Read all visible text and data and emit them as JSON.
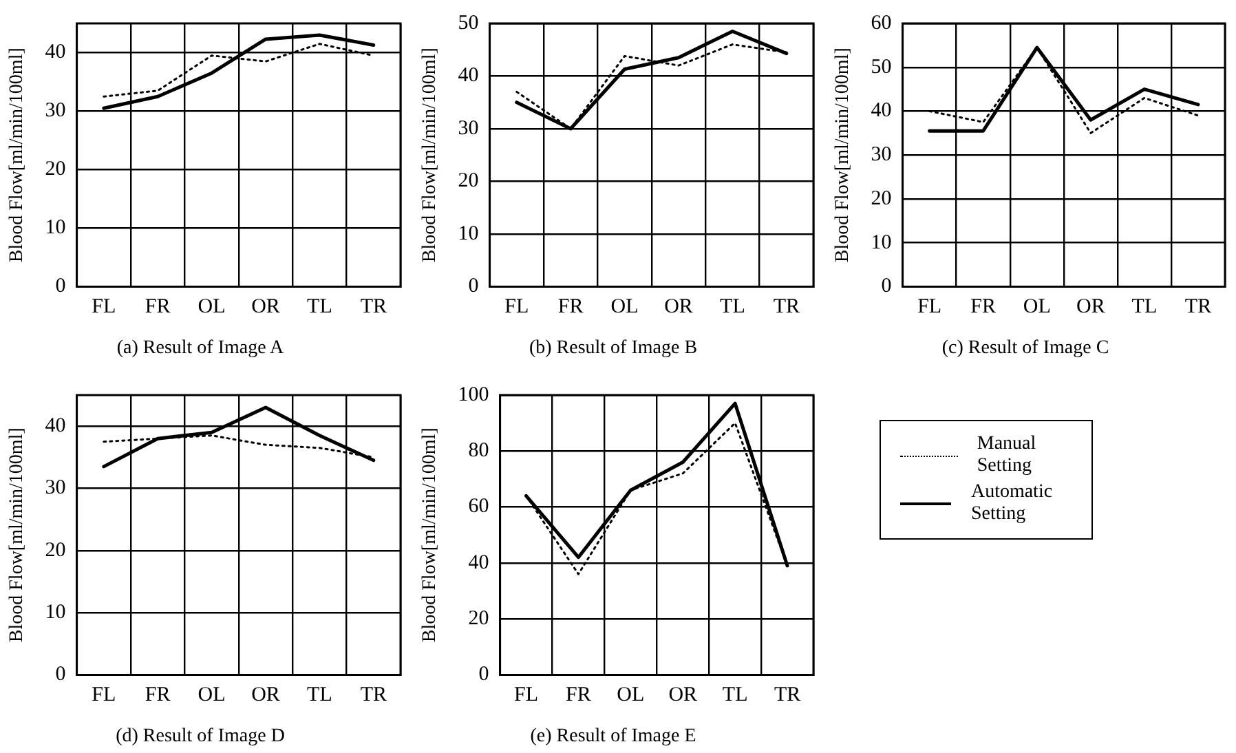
{
  "chart_data": [
    {
      "type": "line",
      "title": "(a) Result of Image A",
      "ylabel": "Blood Flow[ml/min/100ml]",
      "categories": [
        "FL",
        "FR",
        "OL",
        "OR",
        "TL",
        "TR"
      ],
      "ylim": [
        0,
        45
      ],
      "yticks": [
        0,
        10,
        20,
        30,
        40
      ],
      "grid": true,
      "legend": false,
      "marker": "none",
      "series": [
        {
          "color": "#000000",
          "line_style": "dotted",
          "values": [
            32.5,
            33.5,
            39.5,
            38.5,
            41.5,
            39.5
          ]
        },
        {
          "color": "#000000",
          "line_style": "solid",
          "values": [
            30.5,
            32.5,
            36.5,
            42.3,
            43,
            41.3
          ]
        }
      ]
    },
    {
      "type": "line",
      "title": "(b) Result of Image B",
      "ylabel": "Blood Flow[ml/min/100ml]",
      "categories": [
        "FL",
        "FR",
        "OL",
        "OR",
        "TL",
        "TR"
      ],
      "ylim": [
        0,
        50
      ],
      "yticks": [
        0,
        10,
        20,
        30,
        40,
        50
      ],
      "grid": true,
      "legend": false,
      "marker": "none",
      "series": [
        {
          "color": "#000000",
          "line_style": "dotted",
          "values": [
            37,
            30,
            43.8,
            42,
            46,
            44.5
          ]
        },
        {
          "color": "#000000",
          "line_style": "solid",
          "values": [
            35,
            30,
            41.3,
            43.5,
            48.5,
            44.3
          ]
        }
      ]
    },
    {
      "type": "line",
      "title": "(c) Result of Image C",
      "ylabel": "Blood Flow[ml/min/100ml]",
      "categories": [
        "FL",
        "FR",
        "OL",
        "OR",
        "TL",
        "TR"
      ],
      "ylim": [
        0,
        60
      ],
      "yticks": [
        0,
        10,
        20,
        30,
        40,
        50,
        60
      ],
      "grid": true,
      "legend": false,
      "marker": "none",
      "series": [
        {
          "color": "#000000",
          "line_style": "dotted",
          "values": [
            40,
            37.5,
            54.5,
            35,
            43,
            39
          ]
        },
        {
          "color": "#000000",
          "line_style": "solid",
          "values": [
            35.5,
            35.5,
            54.5,
            38,
            45,
            41.5
          ]
        }
      ]
    },
    {
      "type": "line",
      "title": "(d) Result of Image D",
      "ylabel": "Blood Flow[ml/min/100ml]",
      "categories": [
        "FL",
        "FR",
        "OL",
        "OR",
        "TL",
        "TR"
      ],
      "ylim": [
        0,
        45
      ],
      "yticks": [
        0,
        10,
        20,
        30,
        40
      ],
      "grid": true,
      "legend": false,
      "marker": "none",
      "series": [
        {
          "color": "#000000",
          "line_style": "dotted",
          "values": [
            37.5,
            38,
            38.5,
            37,
            36.5,
            35
          ]
        },
        {
          "color": "#000000",
          "line_style": "solid",
          "values": [
            33.5,
            38,
            39,
            43,
            38.5,
            34.5
          ]
        }
      ]
    },
    {
      "type": "line",
      "title": "(e) Result of Image E",
      "ylabel": "Blood Flow[ml/min/100ml]",
      "categories": [
        "FL",
        "FR",
        "OL",
        "OR",
        "TL",
        "TR"
      ],
      "ylim": [
        0,
        100
      ],
      "yticks": [
        0,
        20,
        40,
        60,
        80,
        100
      ],
      "grid": true,
      "legend": "right",
      "marker": "none",
      "series": [
        {
          "name": "Manual Setting",
          "color": "#000000",
          "line_style": "dotted",
          "values": [
            64,
            36,
            66,
            72,
            90,
            39
          ]
        },
        {
          "name": "Automatic Setting",
          "color": "#000000",
          "line_style": "solid",
          "values": [
            64,
            42,
            66,
            76,
            97,
            39
          ]
        }
      ]
    }
  ]
}
